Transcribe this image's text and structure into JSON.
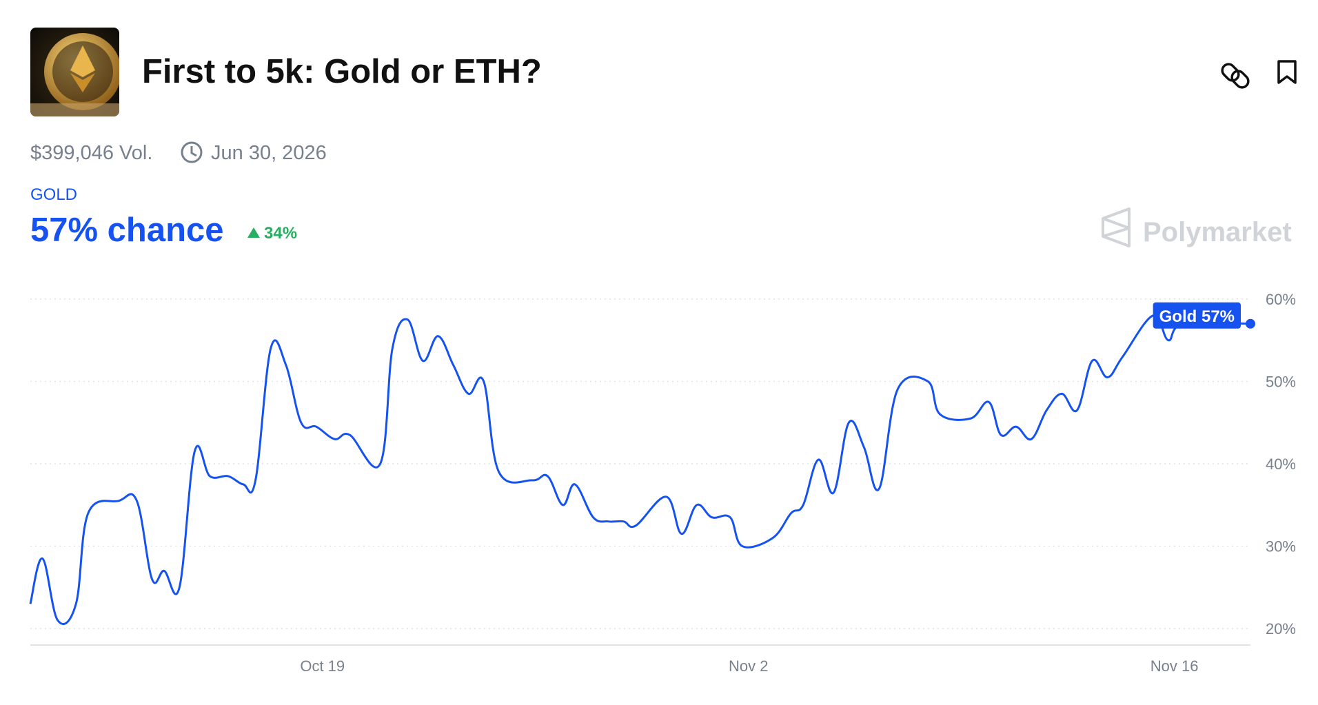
{
  "header": {
    "title": "First to 5k: Gold or ETH?",
    "volume": "$399,046 Vol.",
    "end_date": "Jun 30, 2026",
    "outcome": "GOLD",
    "chance": "57% chance",
    "change": "34%",
    "brand": "Polymarket"
  },
  "chart_data": {
    "type": "line",
    "x": [
      9.4,
      9.8,
      10.3,
      10.9,
      11.3,
      12.3,
      12.9,
      13.4,
      13.8,
      14.3,
      14.8,
      15.3,
      15.9,
      16.4,
      16.8,
      17.3,
      17.8,
      18.3,
      18.8,
      19.4,
      19.9,
      20.9,
      21.3,
      21.8,
      22.3,
      22.8,
      23.3,
      23.8,
      24.3,
      24.8,
      25.9,
      26.4,
      26.9,
      27.3,
      27.9,
      28.4,
      28.9,
      29.3,
      30.3,
      30.8,
      31.3,
      31.8,
      32.4,
      32.8,
      33.8,
      34.4,
      34.8,
      35.3,
      35.8,
      36.3,
      36.8,
      37.3,
      37.9,
      38.9,
      39.3,
      40.3,
      40.9,
      41.3,
      41.8,
      42.3,
      42.8,
      43.3,
      43.8,
      44.3,
      44.8,
      45.3,
      46.3,
      46.8,
      47.3,
      49.5
    ],
    "series": [
      {
        "label": "Gold 57%",
        "color": "#1652f0",
        "values": [
          23,
          28.5,
          21,
          23,
          34,
          35.5,
          35.5,
          26,
          27,
          25,
          41.5,
          38.5,
          38.5,
          37.5,
          38,
          54,
          52,
          45,
          44.5,
          43,
          43.5,
          40,
          54,
          57.5,
          52.5,
          55.5,
          52,
          48.5,
          50,
          39,
          38,
          38.5,
          35,
          37.5,
          33.5,
          33,
          33,
          32.5,
          36,
          31.5,
          35,
          33.5,
          33.5,
          30,
          31,
          34,
          35,
          40.5,
          36.5,
          45,
          42,
          37,
          49,
          50,
          46,
          45.5,
          47.5,
          43.5,
          44.5,
          43,
          46.5,
          48.5,
          46.5,
          52.5,
          50.5,
          53,
          58,
          55,
          57,
          57
        ]
      }
    ],
    "xlim": [
      9.4,
      49.5
    ],
    "ylim": [
      18,
      62
    ],
    "xticks": [
      {
        "value": 19,
        "label": "Oct 19"
      },
      {
        "value": 33,
        "label": "Nov 2"
      },
      {
        "value": 47,
        "label": "Nov 16"
      }
    ],
    "yticks": [
      {
        "value": 20,
        "label": "20%"
      },
      {
        "value": 30,
        "label": "30%"
      },
      {
        "value": 40,
        "label": "40%"
      },
      {
        "value": 50,
        "label": "50%"
      },
      {
        "value": 60,
        "label": "60%"
      }
    ],
    "grid": true
  }
}
